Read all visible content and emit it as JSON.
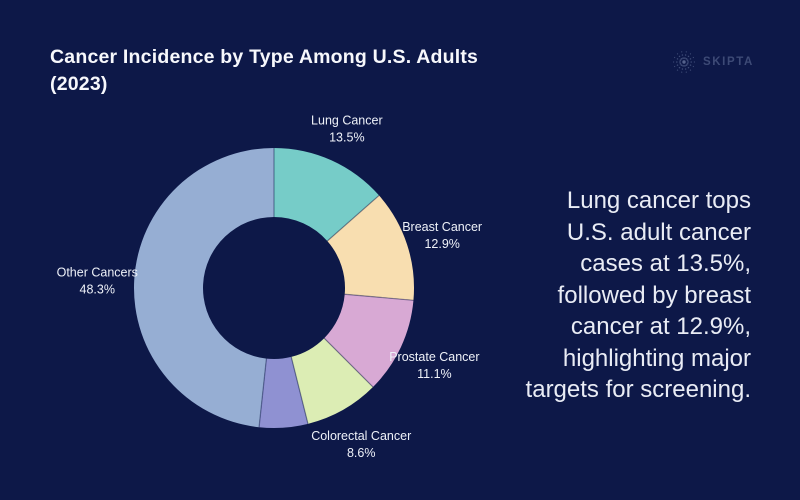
{
  "header": {
    "title": "Cancer Incidence by Type Among U.S. Adults (2023)",
    "brand": {
      "name": "SKIPTA"
    }
  },
  "chart_data": {
    "type": "pie",
    "subtype": "donut",
    "title": "Cancer Incidence by Type Among U.S. Adults (2023)",
    "direction": "clockwise",
    "start_angle_deg": 0,
    "inner_radius_ratio": 0.51,
    "legend_position": "outside-labels",
    "segments": [
      {
        "label": "Lung Cancer",
        "value": 13.5,
        "display": "13.5%",
        "color": "#76ccc8"
      },
      {
        "label": "Breast Cancer",
        "value": 12.9,
        "display": "12.9%",
        "color": "#f8deb0"
      },
      {
        "label": "Prostate Cancer",
        "value": 11.1,
        "display": "11.1%",
        "color": "#d8a9d4"
      },
      {
        "label": "Colorectal Cancer",
        "value": 8.6,
        "display": "8.6%",
        "color": "#dcedb4"
      },
      {
        "label": "",
        "value": 5.6,
        "display": "",
        "color": "#8f91d2"
      },
      {
        "label": "Other Cancers",
        "value": 48.3,
        "display": "48.3%",
        "color": "#96aed3"
      }
    ]
  },
  "callout": {
    "text": "Lung cancer tops U.S. adult cancer cases at 13.5%, followed by breast cancer at 12.9%, highlighting major targets for screening."
  },
  "colors": {
    "background": "#0d1848",
    "title_text": "#f7f8fc",
    "slice_label_text": "#eef1f8",
    "callout_text": "#e9ecf5",
    "brand": "#3d4a76"
  }
}
